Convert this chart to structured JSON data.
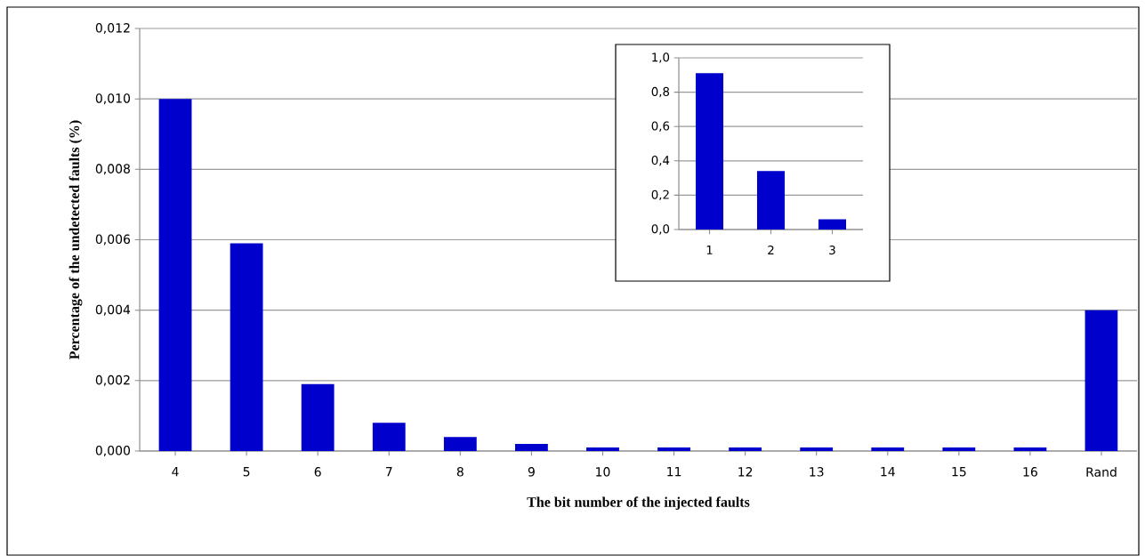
{
  "chart_data": [
    {
      "type": "bar",
      "xlabel": "The bit number of the injected faults",
      "ylabel": "Percentage of the  undetected  faults (%)",
      "categories": [
        "4",
        "5",
        "6",
        "7",
        "8",
        "9",
        "10",
        "11",
        "12",
        "13",
        "14",
        "15",
        "16",
        "Rand"
      ],
      "values": [
        0.01,
        0.0059,
        0.0019,
        0.0008,
        0.0004,
        0.0002,
        0.0001,
        0.0001,
        0.0001,
        0.0001,
        0.0001,
        0.0001,
        0.0001,
        0.004
      ],
      "color": "#0000cc",
      "ylim": [
        0,
        0.012
      ],
      "yticks": [
        {
          "value": 0,
          "label": "0,000"
        },
        {
          "value": 0.002,
          "label": "0,002"
        },
        {
          "value": 0.004,
          "label": "0,004"
        },
        {
          "value": 0.006,
          "label": "0,006"
        },
        {
          "value": 0.008,
          "label": "0,008"
        },
        {
          "value": 0.01,
          "label": "0,010"
        },
        {
          "value": 0.012,
          "label": "0,012"
        }
      ],
      "grid": "y"
    },
    {
      "type": "bar",
      "categories": [
        "1",
        "2",
        "3"
      ],
      "values": [
        0.91,
        0.34,
        0.06
      ],
      "color": "#0000cc",
      "ylim": [
        0,
        1.0
      ],
      "yticks": [
        {
          "value": 0,
          "label": "0,0"
        },
        {
          "value": 0.2,
          "label": "0,2"
        },
        {
          "value": 0.4,
          "label": "0,4"
        },
        {
          "value": 0.6,
          "label": "0,6"
        },
        {
          "value": 0.8,
          "label": "0,8"
        },
        {
          "value": 1.0,
          "label": "1,0"
        }
      ],
      "grid": "y"
    }
  ]
}
